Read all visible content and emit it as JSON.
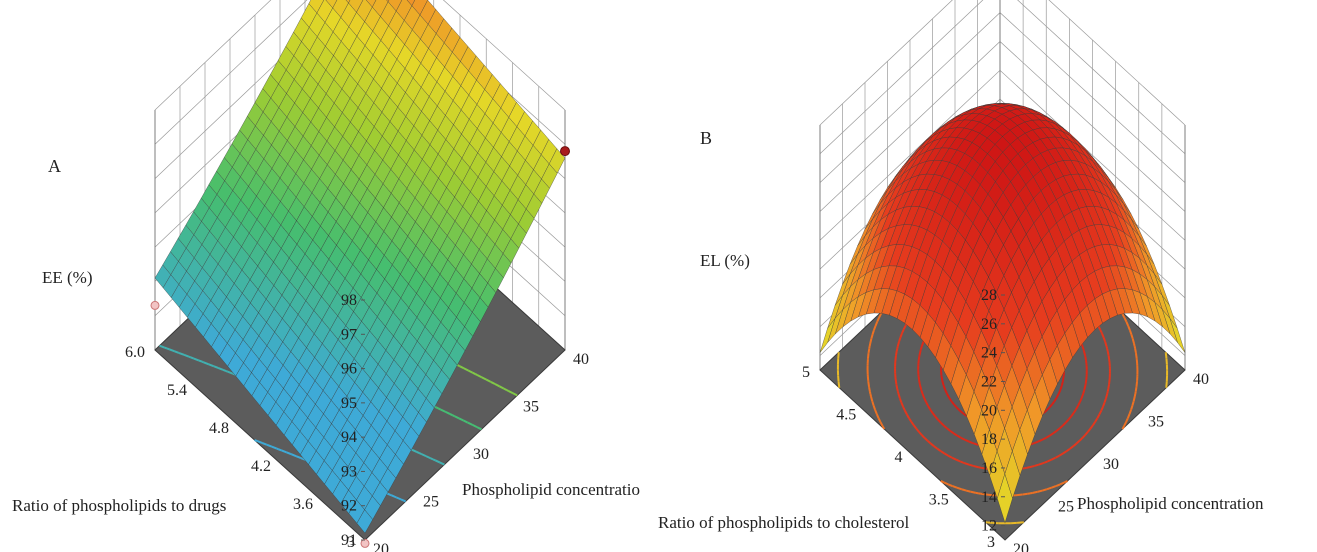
{
  "panels": [
    {
      "id": "A",
      "label": "A"
    },
    {
      "id": "B",
      "label": "B"
    }
  ],
  "colors": {
    "floor": "#5c5c5c",
    "floor_edge": "#3a3a3a",
    "grid": "#9a9a9a",
    "mesh": "#3c3c3c"
  },
  "chart_data": [
    {
      "type": "surface",
      "panel": "A",
      "zlabel": "EE (%)",
      "xlabel": "Phospholipid concentration",
      "ylabel": "Ratio of phospholipids to drugs",
      "x_ticks": [
        "20",
        "25",
        "30",
        "35",
        "40"
      ],
      "y_ticks": [
        "3",
        "3.6",
        "4.2",
        "4.8",
        "5.4",
        "6.0"
      ],
      "z_ticks": [
        "91",
        "92",
        "93",
        "94",
        "95",
        "96",
        "97",
        "98"
      ],
      "xlim": [
        20,
        40
      ],
      "ylim": [
        3,
        6
      ],
      "zlim": [
        91,
        98
      ],
      "corners": [
        {
          "x": 20,
          "y": 3,
          "z": 91.2
        },
        {
          "x": 40,
          "y": 3,
          "z": 96.6
        },
        {
          "x": 40,
          "y": 6,
          "z": 98.1
        },
        {
          "x": 20,
          "y": 6,
          "z": 93.1
        }
      ],
      "design_points": [
        {
          "x": 40,
          "y": 6,
          "z": 98.1,
          "above": true
        },
        {
          "x": 40,
          "y": 3,
          "z": 96.8,
          "above": true
        },
        {
          "x": 20,
          "y": 6,
          "z": 92.3,
          "above": false
        },
        {
          "x": 20,
          "y": 3,
          "z": 90.9,
          "above": false
        }
      ]
    },
    {
      "type": "surface",
      "panel": "B",
      "zlabel": "EL (%)",
      "xlabel": "Phospholipid concentration",
      "ylabel": "Ratio of phospholipids to cholesterol",
      "x_ticks": [
        "20",
        "25",
        "30",
        "35",
        "40"
      ],
      "y_ticks": [
        "3",
        "3.5",
        "4",
        "4.5",
        "5"
      ],
      "z_ticks": [
        "12",
        "14",
        "16",
        "18",
        "20",
        "22",
        "24",
        "26",
        "28"
      ],
      "xlim": [
        20,
        40
      ],
      "ylim": [
        3,
        5
      ],
      "zlim": [
        11,
        28
      ],
      "model": {
        "peak": 27.2,
        "x0": 30,
        "y0": 4,
        "curvature": 7.5,
        "corner_drop": 0.9
      },
      "contour_levels": [
        15,
        19,
        22,
        24,
        25.5
      ]
    }
  ]
}
